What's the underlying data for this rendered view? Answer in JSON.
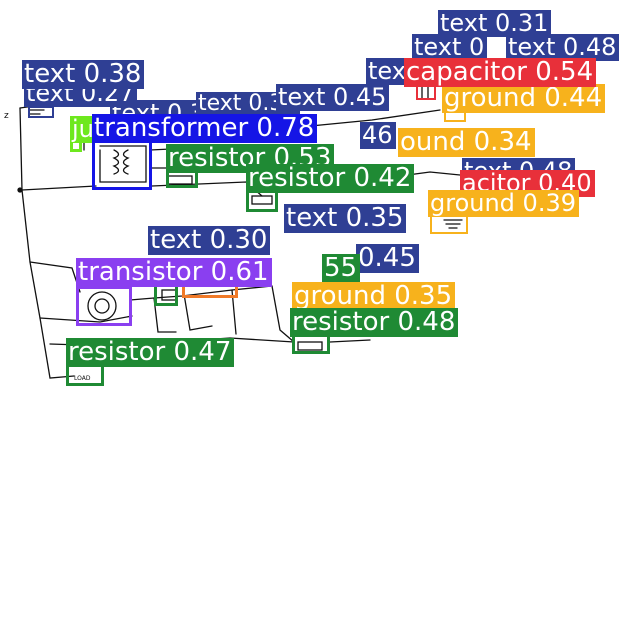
{
  "colors": {
    "text": "#2f3f94",
    "transformer": "#1515e6",
    "resistor": "#1f8a34",
    "capacitor": "#e8303a",
    "ground": "#f7b21c",
    "transistor": "#8a3ff0",
    "junction": "#6ee81e",
    "inductor": "#f07a28"
  },
  "detections": [
    {
      "id": "d1",
      "class": "text",
      "label": "text 0.31"
    },
    {
      "id": "d2",
      "class": "text",
      "label": "text 0"
    },
    {
      "id": "d3",
      "class": "text",
      "label": "text 0.48"
    },
    {
      "id": "d4",
      "class": "text",
      "label": "tex"
    },
    {
      "id": "d5",
      "class": "capacitor",
      "label": "capacitor 0.54"
    },
    {
      "id": "d6",
      "class": "ground",
      "label": "ground 0.44"
    },
    {
      "id": "d7",
      "class": "text",
      "label": "text 0.38"
    },
    {
      "id": "d8",
      "class": "text",
      "label": "text 0.27"
    },
    {
      "id": "d9",
      "class": "text",
      "label": "text 0.39"
    },
    {
      "id": "d10",
      "class": "text",
      "label": "text 0.45"
    },
    {
      "id": "d11",
      "class": "text",
      "label": "text 0.3"
    },
    {
      "id": "d12",
      "class": "junction",
      "label": "ju"
    },
    {
      "id": "d13",
      "class": "transformer",
      "label": "transformer 0.78"
    },
    {
      "id": "d14",
      "class": "text",
      "label": "46"
    },
    {
      "id": "d15",
      "class": "ground",
      "label": "ound 0.34"
    },
    {
      "id": "d16",
      "class": "resistor",
      "label": "resistor 0.53"
    },
    {
      "id": "d17",
      "class": "resistor",
      "label": "resistor 0.42"
    },
    {
      "id": "d18",
      "class": "text",
      "label": "text 0.48"
    },
    {
      "id": "d19",
      "class": "capacitor",
      "label": "acitor 0.40"
    },
    {
      "id": "d20",
      "class": "ground",
      "label": "ground 0.39"
    },
    {
      "id": "d21",
      "class": "text",
      "label": "text 0.35"
    },
    {
      "id": "d22",
      "class": "text",
      "label": "text 0.30"
    },
    {
      "id": "d23",
      "class": "text",
      "label": "0.45"
    },
    {
      "id": "d24",
      "class": "resistor",
      "label": "55"
    },
    {
      "id": "d25",
      "class": "transistor",
      "label": "transistor 0.61"
    },
    {
      "id": "d26",
      "class": "ground",
      "label": "ground 0.35"
    },
    {
      "id": "d27",
      "class": "resistor",
      "label": "resistor 0.48"
    },
    {
      "id": "d28",
      "class": "resistor",
      "label": "resistor 0.47"
    },
    {
      "id": "d29",
      "class": "inductor",
      "label": ""
    }
  ],
  "sketch_text": {
    "load": "LOAD",
    "node_mark": "z"
  }
}
